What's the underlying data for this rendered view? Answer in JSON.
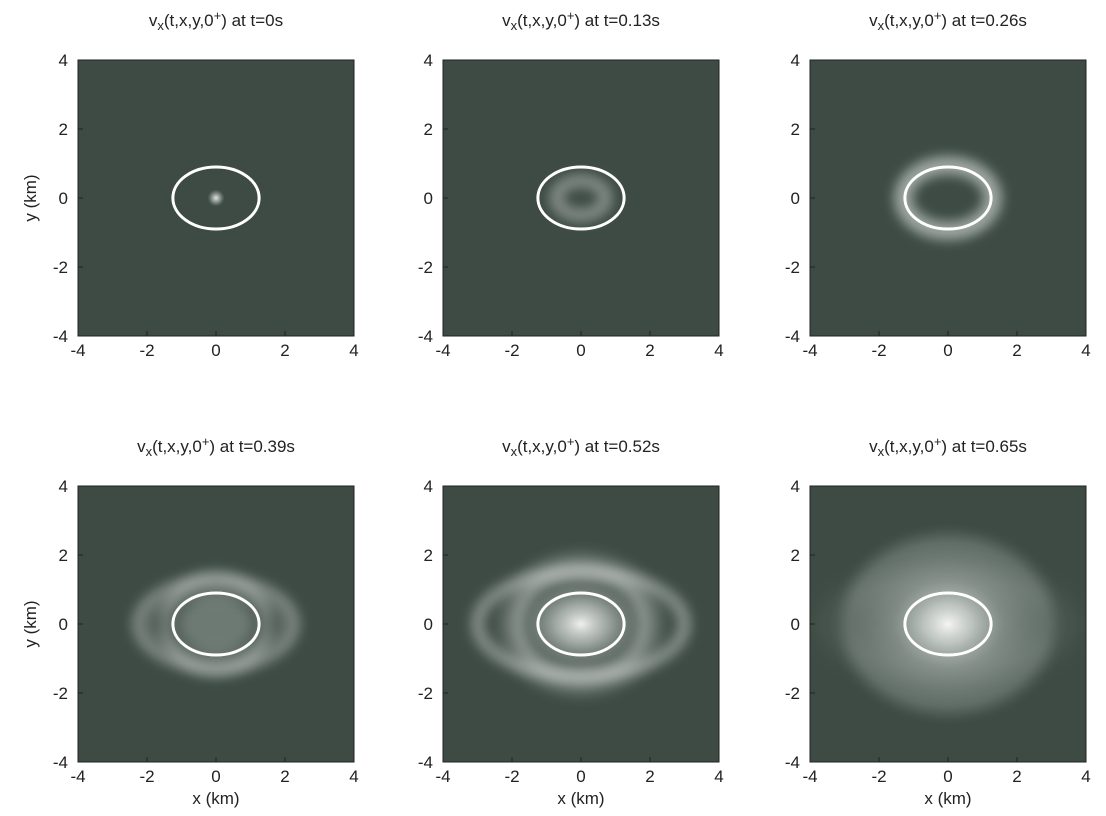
{
  "chart_data": [
    {
      "type": "heatmap",
      "title_parts": [
        "v",
        "x",
        "(t,x,y,0",
        "+",
        ") at t=0s"
      ],
      "ylabel": "y (km)",
      "xlim": [
        -4,
        4
      ],
      "ylim": [
        -4,
        4
      ],
      "xticks": [
        -4,
        -2,
        0,
        2,
        4
      ],
      "yticks": [
        -4,
        -2,
        0,
        2,
        4
      ],
      "color": "#3d4b44"
    },
    {
      "type": "heatmap",
      "title_parts": [
        "v",
        "x",
        "(t,x,y,0",
        "+",
        ") at t=0.13s"
      ],
      "xlim": [
        -4,
        4
      ],
      "ylim": [
        -4,
        4
      ],
      "xticks": [
        -4,
        -2,
        0,
        2,
        4
      ],
      "yticks": [
        -4,
        -2,
        0,
        2,
        4
      ],
      "color": "#3d4b44"
    },
    {
      "type": "heatmap",
      "title_parts": [
        "v",
        "x",
        "(t,x,y,0",
        "+",
        ") at t=0.26s"
      ],
      "xlim": [
        -4,
        4
      ],
      "ylim": [
        -4,
        4
      ],
      "xticks": [
        -4,
        -2,
        0,
        2,
        4
      ],
      "yticks": [
        -4,
        -2,
        0,
        2,
        4
      ],
      "color": "#3d4b44"
    },
    {
      "type": "heatmap",
      "title_parts": [
        "v",
        "x",
        "(t,x,y,0",
        "+",
        ") at t=0.39s"
      ],
      "ylabel": "y (km)",
      "xlabel": "x (km)",
      "xlim": [
        -4,
        4
      ],
      "ylim": [
        -4,
        4
      ],
      "xticks": [
        -4,
        -2,
        0,
        2,
        4
      ],
      "yticks": [
        -4,
        -2,
        0,
        2,
        4
      ],
      "color": "#3d4b44"
    },
    {
      "type": "heatmap",
      "title_parts": [
        "v",
        "x",
        "(t,x,y,0",
        "+",
        ") at t=0.52s"
      ],
      "xlabel": "x (km)",
      "xlim": [
        -4,
        4
      ],
      "ylim": [
        -4,
        4
      ],
      "xticks": [
        -4,
        -2,
        0,
        2,
        4
      ],
      "yticks": [
        -4,
        -2,
        0,
        2,
        4
      ],
      "color": "#3d4b44"
    },
    {
      "type": "heatmap",
      "title_parts": [
        "v",
        "x",
        "(t,x,y,0",
        "+",
        ") at t=0.65s"
      ],
      "xlabel": "x (km)",
      "xlim": [
        -4,
        4
      ],
      "ylim": [
        -4,
        4
      ],
      "xticks": [
        -4,
        -2,
        0,
        2,
        4
      ],
      "yticks": [
        -4,
        -2,
        0,
        2,
        4
      ],
      "color": "#3d4b44"
    }
  ]
}
